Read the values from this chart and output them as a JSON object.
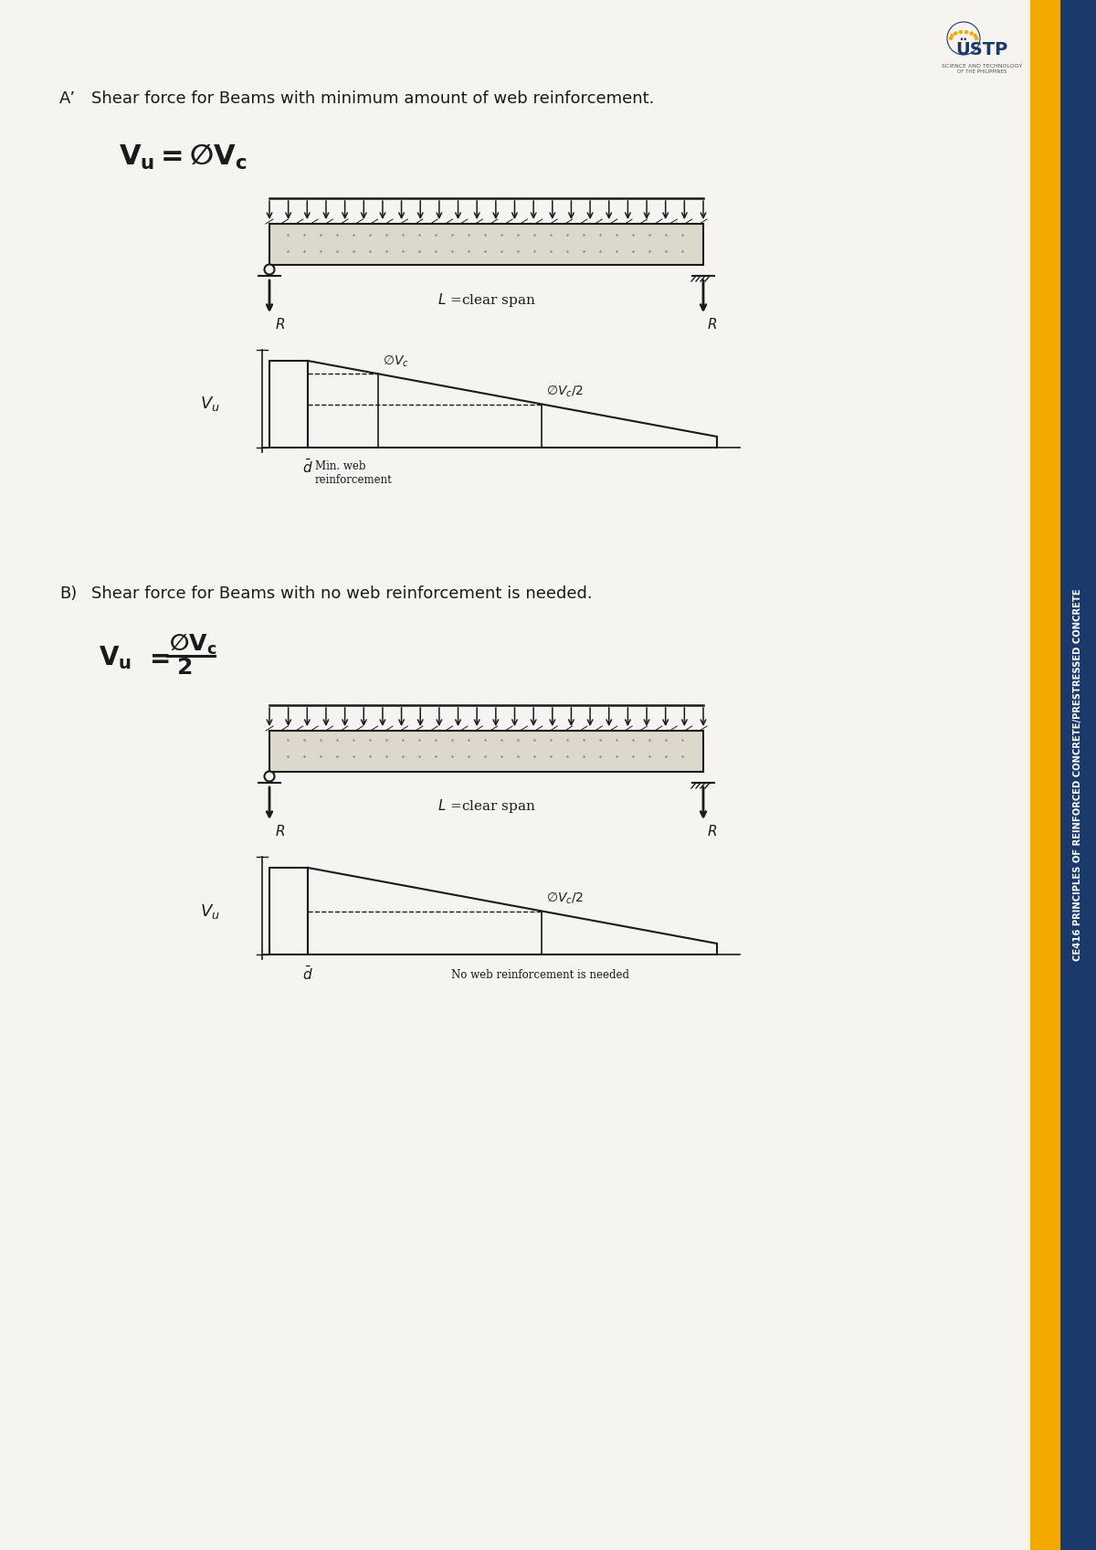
{
  "bg_color": "#f5f4f0",
  "sidebar_gold": "#f5a800",
  "sidebar_blue": "#1a3a6b",
  "sidebar_text": "CE416 PRINCIPLES OF REINFORCED CONCRETE/PRESTRESSED CONCRETE",
  "title_A": "Aᴰ   Shear force for Beams with minimum amount of web reinforcement.",
  "title_B": "B)   Shear force for Beams with no web reinforcement is needed.",
  "beam_facecolor": "#e8e5dc",
  "black": "#1a1a1a",
  "white": "#ffffff"
}
